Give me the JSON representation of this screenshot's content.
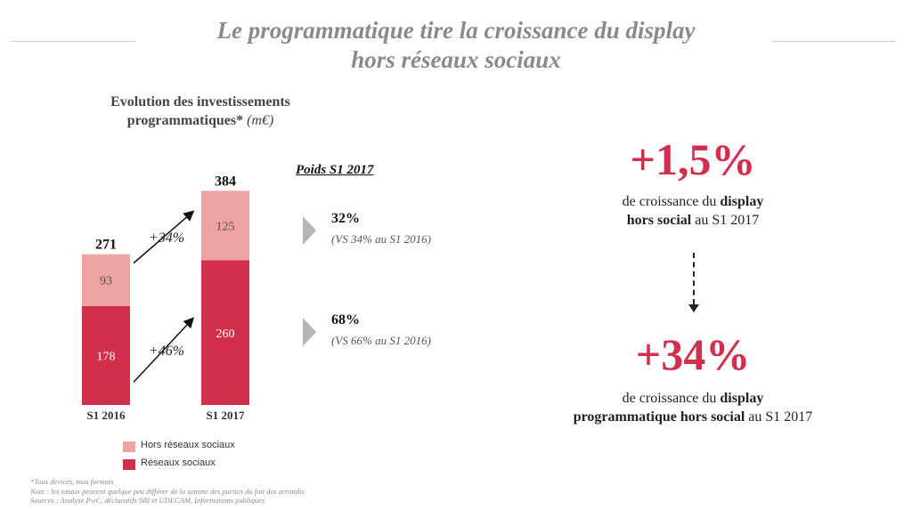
{
  "title": {
    "line1": "Le programmatique tire la croissance du display",
    "line2": "hors réseaux sociaux"
  },
  "chart_title": {
    "main": "Evolution des investissements programmatiques*",
    "unit": "(m€)"
  },
  "chart_data": {
    "type": "bar",
    "stacked": true,
    "categories": [
      "S1 2016",
      "S1 2017"
    ],
    "series": [
      {
        "name": "Réseaux sociaux",
        "values": [
          178,
          260
        ],
        "color": "#d0304d"
      },
      {
        "name": "Hors réseaux sociaux",
        "values": [
          93,
          125
        ],
        "color": "#eda39f"
      }
    ],
    "totals": [
      "271",
      "384"
    ],
    "growth": [
      {
        "label": "+34%",
        "series": "Hors réseaux sociaux"
      },
      {
        "label": "+46%",
        "series": "Réseaux sociaux"
      }
    ],
    "ylim": [
      0,
      384
    ]
  },
  "poids": {
    "header": "Poids S1 2017",
    "items": [
      {
        "pct": "32%",
        "vs": "(VS 34% au S1 2016)"
      },
      {
        "pct": "68%",
        "vs": "(VS 66% au S1 2016)"
      }
    ]
  },
  "legend": [
    {
      "label": "Hors réseaux sociaux",
      "color": "#eda39f"
    },
    {
      "label": "Réseaux sociaux",
      "color": "#d0304d"
    }
  ],
  "kpi1": {
    "value": "+1,5%",
    "pre": "de croissance du ",
    "bold1": "display",
    "bold2": "hors social",
    "post": " au S1 2017"
  },
  "kpi2": {
    "value": "+34%",
    "pre": "de croissance du ",
    "bold1": "display",
    "bold2": "programmatique hors social",
    "post": " au S1 2017"
  },
  "footnotes": [
    "*Tous devices, tous formats",
    "Note : les totaux peuvent quelque peu différer de la somme des parties du fait des arrondis",
    "Sources : Analyse PwC, déclaratifs SRI et UDECAM, Informations publiques"
  ]
}
